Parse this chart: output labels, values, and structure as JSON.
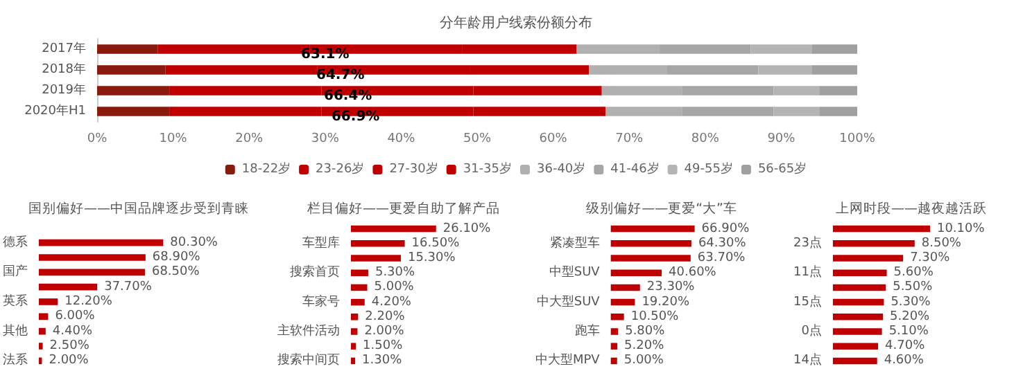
{
  "chart_data": [
    {
      "type": "bar",
      "title": "分年龄用户线索份额分布",
      "orientation": "horizontal",
      "stacked": true,
      "categories": [
        "2017年",
        "2018年",
        "2019年",
        "2020年H1"
      ],
      "xlim": [
        0,
        100
      ],
      "xticks": [
        {
          "value": 0,
          "label": "0%"
        },
        {
          "value": 10,
          "label": "10%"
        },
        {
          "value": 20,
          "label": "20%"
        },
        {
          "value": 30,
          "label": "30%"
        },
        {
          "value": 40,
          "label": "40%"
        },
        {
          "value": 50,
          "label": "50%"
        },
        {
          "value": 60,
          "label": "60%"
        },
        {
          "value": 70,
          "label": "70%"
        },
        {
          "value": 80,
          "label": "80%"
        },
        {
          "value": 90,
          "label": "90%"
        },
        {
          "value": 100,
          "label": "100%"
        }
      ],
      "legend": "bottom",
      "grid": false,
      "series": [
        {
          "name": "18-22岁",
          "color": "#8b1a0e",
          "values": [
            8,
            9,
            9.5,
            9.5
          ]
        },
        {
          "name": "23-26岁",
          "color": "#c00000",
          "values": [
            20,
            20,
            20,
            20
          ]
        },
        {
          "name": "27-30岁",
          "color": "#c00000",
          "values": [
            20,
            20,
            20,
            20
          ]
        },
        {
          "name": "31-35岁",
          "color": "#c00000",
          "values": [
            15.1,
            15.7,
            16.9,
            17.4
          ]
        },
        {
          "name": "36-40岁",
          "color": "#b0b0b0",
          "values": [
            10.9,
            10.3,
            10.6,
            10.1
          ]
        },
        {
          "name": "41-46岁",
          "color": "#a6a6a6",
          "values": [
            12,
            12,
            12,
            12
          ]
        },
        {
          "name": "49-55岁",
          "color": "#b4b4b4",
          "values": [
            8,
            7,
            6,
            6
          ]
        },
        {
          "name": "56-65岁",
          "color": "#a0a0a0",
          "values": [
            6,
            6,
            5,
            5
          ]
        }
      ],
      "annotations": [
        {
          "text": "63.1%",
          "x": 30,
          "y": "2017年"
        },
        {
          "text": "64.7%",
          "x": 32,
          "y": "2018年"
        },
        {
          "text": "66.4%",
          "x": 33,
          "y": "2019年"
        },
        {
          "text": "66.9%",
          "x": 34,
          "y": "2020年H1"
        }
      ]
    },
    {
      "type": "bar",
      "title": "国别偏好——中国品牌逐步受到青睐",
      "orientation": "horizontal",
      "tick_labels": "y",
      "color": "#c00000",
      "categories": [
        "德系",
        null,
        "国产",
        null,
        "英系",
        null,
        "其他",
        null,
        "法系"
      ],
      "values": [
        80.3,
        68.9,
        68.5,
        37.7,
        12.2,
        6.0,
        4.4,
        2.5,
        2.0
      ],
      "value_labels": [
        "80.30%",
        "68.90%",
        "68.50%",
        "37.70%",
        "12.20%",
        "6.00%",
        "4.40%",
        "2.50%",
        "2.00%"
      ]
    },
    {
      "type": "bar",
      "title": "栏目偏好——更爱自助了解产品",
      "orientation": "horizontal",
      "tick_labels": "y",
      "color": "#c00000",
      "categories": [
        null,
        "车型库",
        null,
        "搜索首页",
        null,
        "车家号",
        null,
        "主软件活动",
        null,
        "搜索中间页"
      ],
      "values": [
        26.1,
        16.5,
        15.3,
        5.3,
        5.0,
        4.2,
        2.2,
        2.0,
        1.5,
        1.3
      ],
      "value_labels": [
        "26.10%",
        "16.50%",
        "15.30%",
        "5.30%",
        "5.00%",
        "4.20%",
        "2.20%",
        "2.00%",
        "1.50%",
        "1.30%"
      ]
    },
    {
      "type": "bar",
      "title": "级别偏好——更爱“大”车",
      "orientation": "horizontal",
      "tick_labels": "y",
      "color": "#c00000",
      "categories": [
        null,
        "紧凑型车",
        null,
        "中型SUV",
        null,
        "中大型SUV",
        null,
        "跑车",
        null,
        "中大型MPV"
      ],
      "values": [
        66.9,
        64.3,
        63.7,
        40.6,
        23.3,
        19.2,
        10.5,
        5.8,
        5.2,
        5.0
      ],
      "value_labels": [
        "66.90%",
        "64.30%",
        "63.70%",
        "40.60%",
        "23.30%",
        "19.20%",
        "10.50%",
        "5.80%",
        "5.20%",
        "5.00%"
      ]
    },
    {
      "type": "bar",
      "title": "上网时段——越夜越活跃",
      "orientation": "horizontal",
      "tick_labels": "y",
      "color": "#c00000",
      "categories": [
        null,
        "23点",
        null,
        "11点",
        null,
        "15点",
        null,
        "0点",
        null,
        "14点"
      ],
      "values": [
        10.1,
        8.5,
        7.3,
        5.6,
        5.5,
        5.3,
        5.2,
        5.1,
        4.7,
        4.6
      ],
      "value_labels": [
        "10.10%",
        "8.50%",
        "7.30%",
        "5.60%",
        "5.50%",
        "5.30%",
        "5.20%",
        "5.10%",
        "4.70%",
        "4.60%"
      ]
    }
  ]
}
